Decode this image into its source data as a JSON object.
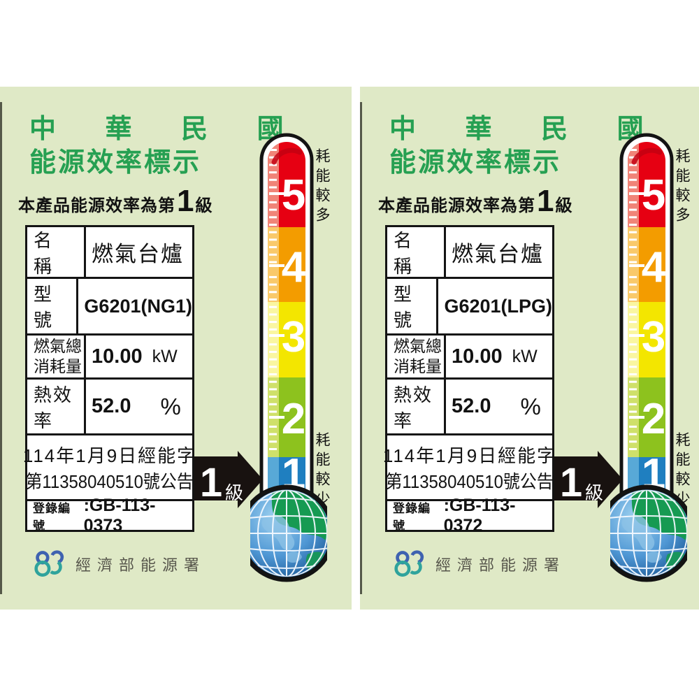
{
  "colors": {
    "panel_bg": "#dfe9c6",
    "title_green": "#26a052",
    "arrow_black": "#181210",
    "footer_text": "#56554b",
    "logo_blue": "#3f62b0",
    "logo_teal": "#2fa39c"
  },
  "labels": [
    {
      "title_line1": "中 華 民 國",
      "title_line2": "能源效率標示",
      "subtitle_prefix": "本產品能源效率為第",
      "subtitle_grade": "1",
      "subtitle_suffix": "級",
      "table": {
        "name_label": "名　稱",
        "name_value": "燃氣台爐",
        "model_label": "型　號",
        "model_value": "G6201(NG1)",
        "consumption_label_line1": "燃氣總",
        "consumption_label_line2": "消耗量",
        "consumption_value": "10.00",
        "consumption_unit": "kW",
        "efficiency_label": "熱效率",
        "efficiency_value": "52.0",
        "efficiency_unit": "%",
        "announcement_line1": "114年1月9日經能字",
        "announcement_line2": "第11358040510號公告",
        "registration_label": "登錄編號",
        "registration_value": ":GB-113-0373"
      },
      "grade_arrow": {
        "number": "1",
        "suffix": "級"
      },
      "thermometer": {
        "top_caption": "耗能較多",
        "bottom_caption": "耗能較少",
        "levels": [
          {
            "value": "5",
            "color": "#e60012",
            "strip": "#f08478"
          },
          {
            "value": "4",
            "color": "#f39c00",
            "strip": "#f9c96a"
          },
          {
            "value": "3",
            "color": "#f3e600",
            "strip": "#faf6a0"
          },
          {
            "value": "2",
            "color": "#8dc21e",
            "strip": "#cfe06a"
          },
          {
            "value": "1",
            "color": "#1f7fc0",
            "strip": "#58a9d7"
          }
        ]
      },
      "footer": {
        "agency": "經濟部能源署"
      }
    },
    {
      "title_line1": "中 華 民 國",
      "title_line2": "能源效率標示",
      "subtitle_prefix": "本產品能源效率為第",
      "subtitle_grade": "1",
      "subtitle_suffix": "級",
      "table": {
        "name_label": "名　稱",
        "name_value": "燃氣台爐",
        "model_label": "型　號",
        "model_value": "G6201(LPG)",
        "consumption_label_line1": "燃氣總",
        "consumption_label_line2": "消耗量",
        "consumption_value": "10.00",
        "consumption_unit": "kW",
        "efficiency_label": "熱效率",
        "efficiency_value": "52.0",
        "efficiency_unit": "%",
        "announcement_line1": "114年1月9日經能字",
        "announcement_line2": "第11358040510號公告",
        "registration_label": "登錄編號",
        "registration_value": ":GB-113-0372"
      },
      "grade_arrow": {
        "number": "1",
        "suffix": "級"
      },
      "thermometer": {
        "top_caption": "耗能較多",
        "bottom_caption": "耗能較少",
        "levels": [
          {
            "value": "5",
            "color": "#e60012",
            "strip": "#f08478"
          },
          {
            "value": "4",
            "color": "#f39c00",
            "strip": "#f9c96a"
          },
          {
            "value": "3",
            "color": "#f3e600",
            "strip": "#faf6a0"
          },
          {
            "value": "2",
            "color": "#8dc21e",
            "strip": "#cfe06a"
          },
          {
            "value": "1",
            "color": "#1f7fc0",
            "strip": "#58a9d7"
          }
        ]
      },
      "footer": {
        "agency": "經濟部能源署"
      }
    }
  ]
}
